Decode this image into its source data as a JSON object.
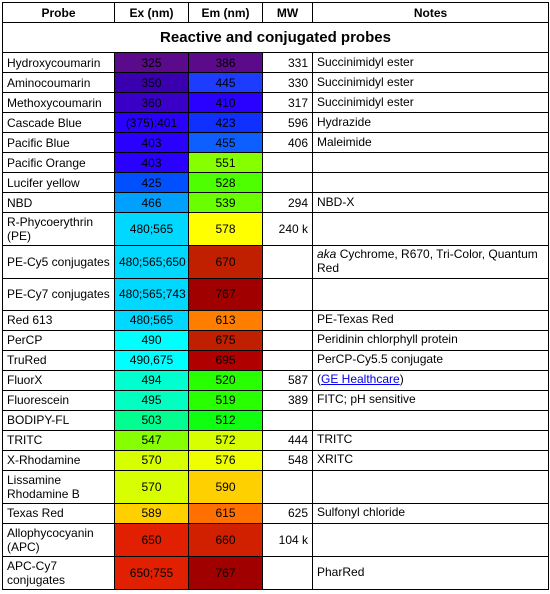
{
  "table": {
    "headers": {
      "probe": "Probe",
      "ex": "Ex (nm)",
      "em": "Em (nm)",
      "mw": "MW",
      "notes": "Notes"
    },
    "section_title": "Reactive and conjugated probes",
    "rows": [
      {
        "probe": "Hydroxycoumarin",
        "ex": "325",
        "ex_bg": "#5a0a8a",
        "ex_fg": "#000000",
        "em": "386",
        "em_bg": "#5a0a8a",
        "em_fg": "#000000",
        "mw": "331",
        "notes": "Succinimidyl ester",
        "tall": false
      },
      {
        "probe": "Aminocoumarin",
        "ex": "350",
        "ex_bg": "#3a00b0",
        "ex_fg": "#000000",
        "em": "445",
        "em_bg": "#1d3cff",
        "em_fg": "#000000",
        "mw": "330",
        "notes": "Succinimidyl ester",
        "tall": false
      },
      {
        "probe": "Methoxycoumarin",
        "ex": "360",
        "ex_bg": "#3a00c8",
        "ex_fg": "#000000",
        "em": "410",
        "em_bg": "#2a00ff",
        "em_fg": "#000000",
        "mw": "317",
        "notes": "Succinimidyl ester",
        "tall": false
      },
      {
        "probe": "Cascade Blue",
        "ex": "(375);401",
        "ex_bg": "#2a00ff",
        "ex_fg": "#000000",
        "em": "423",
        "em_bg": "#1030ff",
        "em_fg": "#000000",
        "mw": "596",
        "notes": "Hydrazide",
        "tall": false
      },
      {
        "probe": "Pacific Blue",
        "ex": "403",
        "ex_bg": "#2a00ff",
        "ex_fg": "#000000",
        "em": "455",
        "em_bg": "#0d60ff",
        "em_fg": "#000000",
        "mw": "406",
        "notes": "Maleimide",
        "tall": false
      },
      {
        "probe": "Pacific Orange",
        "ex": "403",
        "ex_bg": "#2a00ff",
        "ex_fg": "#000000",
        "em": "551",
        "em_bg": "#86ff00",
        "em_fg": "#000000",
        "mw": "",
        "notes": "",
        "tall": false
      },
      {
        "probe": "Lucifer yellow",
        "ex": "425",
        "ex_bg": "#0050ff",
        "ex_fg": "#000000",
        "em": "528",
        "em_bg": "#4dff00",
        "em_fg": "#000000",
        "mw": "",
        "notes": "",
        "tall": false
      },
      {
        "probe": "NBD",
        "ex": "466",
        "ex_bg": "#00a0ff",
        "ex_fg": "#000000",
        "em": "539",
        "em_bg": "#6aff00",
        "em_fg": "#000000",
        "mw": "294",
        "notes": "NBD-X",
        "tall": false
      },
      {
        "probe": "R-Phycoerythrin (PE)",
        "ex": "480;565",
        "ex_bg": "#00d8ff",
        "ex_fg": "#000000",
        "em": "578",
        "em_bg": "#ffff00",
        "em_fg": "#000000",
        "mw": "240 k",
        "notes": "",
        "tall": true
      },
      {
        "probe": "PE-Cy5 conjugates",
        "ex": "480;565;650",
        "ex_bg": "#00d8ff",
        "ex_fg": "#000000",
        "em": "670",
        "em_bg": "#c02000",
        "em_fg": "#000000",
        "mw": "",
        "notes_html": "<i>aka</i> Cychrome, R670, Tri-Color, Quantum Red",
        "tall": true
      },
      {
        "probe": "PE-Cy7 conjugates",
        "ex": "480;565;743",
        "ex_bg": "#00d8ff",
        "ex_fg": "#000000",
        "em": "767",
        "em_bg": "#a00000",
        "em_fg": "#000000",
        "mw": "",
        "notes": "",
        "tall": true
      },
      {
        "probe": "Red 613",
        "ex": "480;565",
        "ex_bg": "#00d8ff",
        "ex_fg": "#000000",
        "em": "613",
        "em_bg": "#ff7e00",
        "em_fg": "#000000",
        "mw": "",
        "notes": "PE-Texas Red",
        "tall": false
      },
      {
        "probe": "PerCP",
        "ex": "490",
        "ex_bg": "#00ffff",
        "ex_fg": "#000000",
        "em": "675",
        "em_bg": "#c02000",
        "em_fg": "#000000",
        "mw": "",
        "notes": "Peridinin chlorphyll protein",
        "tall": false
      },
      {
        "probe": "TruRed",
        "ex": "490,675",
        "ex_bg": "#00ffff",
        "ex_fg": "#000000",
        "em": "695",
        "em_bg": "#b00000",
        "em_fg": "#000000",
        "mw": "",
        "notes": "PerCP-Cy5.5 conjugate",
        "tall": false
      },
      {
        "probe": "FluorX",
        "ex": "494",
        "ex_bg": "#00ffd0",
        "ex_fg": "#000000",
        "em": "520",
        "em_bg": "#28ff00",
        "em_fg": "#000000",
        "mw": "587",
        "notes_link": "GE Healthcare",
        "notes_prefix": "(",
        "notes_suffix": ")",
        "tall": false
      },
      {
        "probe": "Fluorescein",
        "ex": "495",
        "ex_bg": "#00ffc0",
        "ex_fg": "#000000",
        "em": "519",
        "em_bg": "#28ff00",
        "em_fg": "#000000",
        "mw": "389",
        "notes": "FITC; pH sensitive",
        "tall": false
      },
      {
        "probe": "BODIPY-FL",
        "ex": "503",
        "ex_bg": "#00ff90",
        "ex_fg": "#000000",
        "em": "512",
        "em_bg": "#10ff10",
        "em_fg": "#000000",
        "mw": "",
        "notes": "",
        "tall": false
      },
      {
        "probe": "TRITC",
        "ex": "547",
        "ex_bg": "#86ff00",
        "ex_fg": "#000000",
        "em": "572",
        "em_bg": "#d8ff00",
        "em_fg": "#000000",
        "mw": "444",
        "notes": "TRITC",
        "tall": false
      },
      {
        "probe": "X-Rhodamine",
        "ex": "570",
        "ex_bg": "#d8ff00",
        "ex_fg": "#000000",
        "em": "576",
        "em_bg": "#f0ff00",
        "em_fg": "#000000",
        "mw": "548",
        "notes": "XRITC",
        "tall": false
      },
      {
        "probe": "Lissamine Rhodamine B",
        "ex": "570",
        "ex_bg": "#d8ff00",
        "ex_fg": "#000000",
        "em": "590",
        "em_bg": "#ffd000",
        "em_fg": "#000000",
        "mw": "",
        "notes": "",
        "tall": true
      },
      {
        "probe": "Texas Red",
        "ex": "589",
        "ex_bg": "#ffd000",
        "ex_fg": "#000000",
        "em": "615",
        "em_bg": "#ff7000",
        "em_fg": "#000000",
        "mw": "625",
        "notes": "Sulfonyl chloride",
        "tall": false
      },
      {
        "probe": "Allophycocyanin (APC)",
        "ex": "650",
        "ex_bg": "#e02000",
        "ex_fg": "#000000",
        "em": "660",
        "em_bg": "#d02000",
        "em_fg": "#000000",
        "mw": "104 k",
        "notes": "",
        "tall": true
      },
      {
        "probe": "APC-Cy7 conjugates",
        "ex": "650;755",
        "ex_bg": "#e02000",
        "ex_fg": "#000000",
        "em": "767",
        "em_bg": "#a00000",
        "em_fg": "#000000",
        "mw": "",
        "notes": "PharRed",
        "tall": true
      }
    ]
  }
}
